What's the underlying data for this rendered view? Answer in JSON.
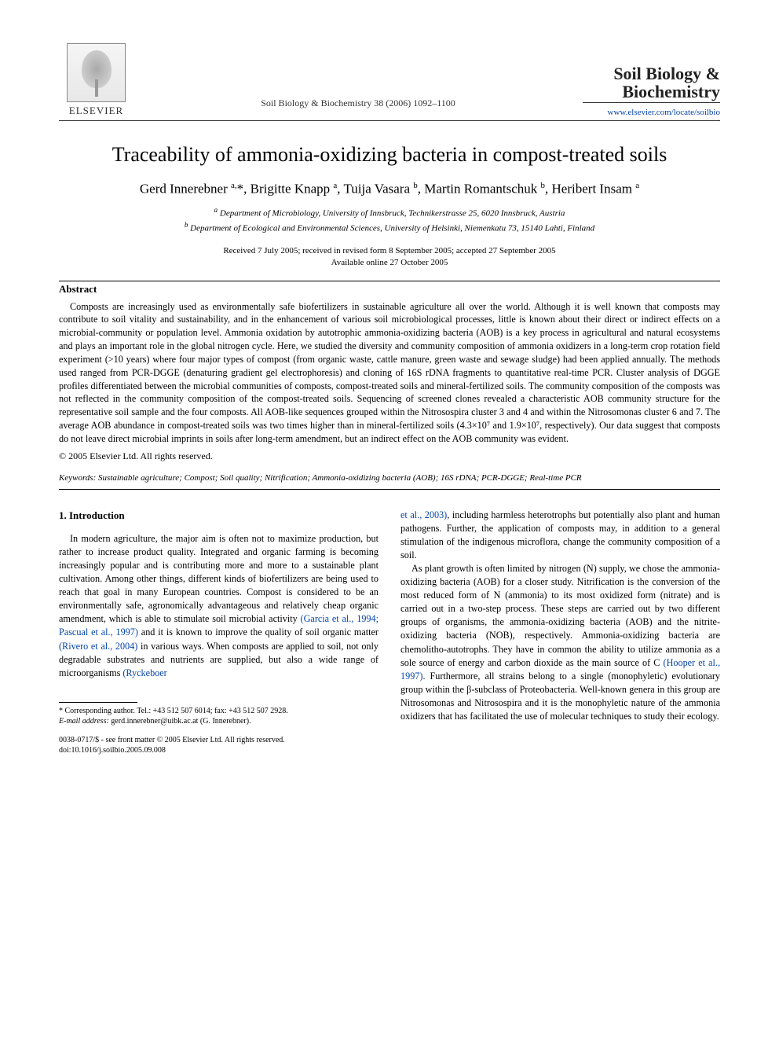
{
  "header": {
    "publisher": "ELSEVIER",
    "citation": "Soil Biology & Biochemistry 38 (2006) 1092–1100",
    "journal_name_line1": "Soil Biology &",
    "journal_name_line2": "Biochemistry",
    "journal_url": "www.elsevier.com/locate/soilbio"
  },
  "title": "Traceability of ammonia-oxidizing bacteria in compost-treated soils",
  "authors_html": "Gerd Innerebner <sup>a,</sup>*, Brigitte Knapp <sup>a</sup>, Tuija Vasara <sup>b</sup>, Martin Romantschuk <sup>b</sup>, Heribert Insam <sup>a</sup>",
  "affiliations": {
    "a": "Department of Microbiology, University of Innsbruck, Technikerstrasse 25, 6020 Innsbruck, Austria",
    "b": "Department of Ecological and Environmental Sciences, University of Helsinki, Niemenkatu 73, 15140 Lahti, Finland"
  },
  "dates": {
    "line1": "Received 7 July 2005; received in revised form 8 September 2005; accepted 27 September 2005",
    "line2": "Available online 27 October 2005"
  },
  "abstract_heading": "Abstract",
  "abstract_body": "Composts are increasingly used as environmentally safe biofertilizers in sustainable agriculture all over the world. Although it is well known that composts may contribute to soil vitality and sustainability, and in the enhancement of various soil microbiological processes, little is known about their direct or indirect effects on a microbial-community or population level. Ammonia oxidation by autotrophic ammonia-oxidizing bacteria (AOB) is a key process in agricultural and natural ecosystems and plays an important role in the global nitrogen cycle. Here, we studied the diversity and community composition of ammonia oxidizers in a long-term crop rotation field experiment (>10 years) where four major types of compost (from organic waste, cattle manure, green waste and sewage sludge) had been applied annually. The methods used ranged from PCR-DGGE (denaturing gradient gel electrophoresis) and cloning of 16S rDNA fragments to quantitative real-time PCR. Cluster analysis of DGGE profiles differentiated between the microbial communities of composts, compost-treated soils and mineral-fertilized soils. The community composition of the composts was not reflected in the community composition of the compost-treated soils. Sequencing of screened clones revealed a characteristic AOB community structure for the representative soil sample and the four composts. All AOB-like sequences grouped within the Nitrosospira cluster 3 and 4 and within the Nitrosomonas cluster 6 and 7. The average AOB abundance in compost-treated soils was two times higher than in mineral-fertilized soils (4.3×10⁷ and 1.9×10⁷, respectively). Our data suggest that composts do not leave direct microbial imprints in soils after long-term amendment, but an indirect effect on the AOB community was evident.",
  "copyright": "© 2005 Elsevier Ltd. All rights reserved.",
  "keywords_label": "Keywords:",
  "keywords": "Sustainable agriculture; Compost; Soil quality; Nitrification; Ammonia-oxidizing bacteria (AOB); 16S rDNA; PCR-DGGE; Real-time PCR",
  "section_heading": "1. Introduction",
  "intro": {
    "p1a": "In modern agriculture, the major aim is often not to maximize production, but rather to increase product quality. Integrated and organic farming is becoming increasingly popular and is contributing more and more to a sustainable plant cultivation. Among other things, different kinds of biofertilizers are being used to reach that goal in many European countries. Compost is considered to be an environmentally safe, agronomically advantageous and relatively cheap organic amendment, which is able to stimulate soil microbial activity ",
    "cite1": "(Garcia et al., 1994; Pascual et al., 1997)",
    "p1b": " and it is known to improve the quality of soil organic matter ",
    "cite2": "(Rivero et al., 2004)",
    "p1c": " in various ways. When composts are applied to soil, not only degradable substrates and nutrients are supplied, but also a wide range of microorganisms ",
    "cite3": "(Ryckeboer",
    "p2top_cont": "et al., 2003)",
    "p2a": ", including harmless heterotrophs but potentially also plant and human pathogens. Further, the application of composts may, in addition to a general stimulation of the indigenous microflora, change the community composition of a soil.",
    "p3a": "As plant growth is often limited by nitrogen (N) supply, we chose the ammonia-oxidizing bacteria (AOB) for a closer study. Nitrification is the conversion of the most reduced form of N (ammonia) to its most oxidized form (nitrate) and is carried out in a two-step process. These steps are carried out by two different groups of organisms, the ammonia-oxidizing bacteria (AOB) and the nitrite-oxidizing bacteria (NOB), respectively. Ammonia-oxidizing bacteria are chemolitho-autotrophs. They have in common the ability to utilize ammonia as a sole source of energy and carbon dioxide as the main source of C ",
    "cite4": "(Hooper et al., 1997)",
    "p3b": ". Furthermore, all strains belong to a single (monophyletic) evolutionary group within the β-subclass of Proteobacteria. Well-known genera in this group are Nitrosomonas and Nitrosospira and it is the monophyletic nature of the ammonia oxidizers that has facilitated the use of molecular techniques to study their ecology."
  },
  "footnote": {
    "corr": "* Corresponding author. Tel.: +43 512 507 6014; fax: +43 512 507 2928.",
    "email_label": "E-mail address:",
    "email": "gerd.innerebner@uibk.ac.at (G. Innerebner)."
  },
  "footer": {
    "issn_line": "0038-0717/$ - see front matter © 2005 Elsevier Ltd. All rights reserved.",
    "doi": "doi:10.1016/j.soilbio.2005.09.008"
  },
  "colors": {
    "link": "#0645ad",
    "text": "#000000",
    "bg": "#ffffff"
  }
}
